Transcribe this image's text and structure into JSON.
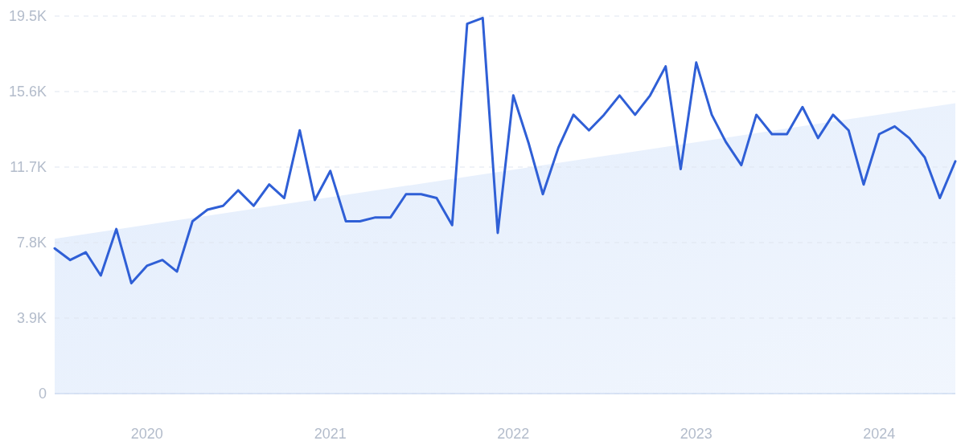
{
  "chart_data": {
    "type": "line",
    "x": [
      "2019-07",
      "2019-08",
      "2019-09",
      "2019-10",
      "2019-11",
      "2019-12",
      "2020-01",
      "2020-02",
      "2020-03",
      "2020-04",
      "2020-05",
      "2020-06",
      "2020-07",
      "2020-08",
      "2020-09",
      "2020-10",
      "2020-11",
      "2020-12",
      "2021-01",
      "2021-02",
      "2021-03",
      "2021-04",
      "2021-05",
      "2021-06",
      "2021-07",
      "2021-08",
      "2021-09",
      "2021-10",
      "2021-11",
      "2021-12",
      "2022-01",
      "2022-02",
      "2022-03",
      "2022-04",
      "2022-05",
      "2022-06",
      "2022-07",
      "2022-08",
      "2022-09",
      "2022-10",
      "2022-11",
      "2022-12",
      "2023-01",
      "2023-02",
      "2023-03",
      "2023-04",
      "2023-05",
      "2023-06",
      "2023-07",
      "2023-08",
      "2023-09",
      "2023-10",
      "2023-11",
      "2023-12",
      "2024-01",
      "2024-02",
      "2024-03",
      "2024-04",
      "2024-05",
      "2024-06"
    ],
    "series": [
      {
        "type": "area",
        "color": "#e3edfc",
        "x": [
          "2019-07",
          "2024-06"
        ],
        "values": [
          8000,
          15000
        ]
      },
      {
        "color": "#2f5fd6",
        "values": [
          7500,
          6900,
          7300,
          6100,
          8500,
          5700,
          6600,
          6900,
          6300,
          8900,
          9500,
          9700,
          10500,
          9700,
          10800,
          10100,
          13600,
          10000,
          11500,
          8900,
          8900,
          9100,
          9100,
          10300,
          10300,
          10100,
          8700,
          19100,
          19400,
          8300,
          15400,
          12900,
          10300,
          12700,
          14400,
          13600,
          14400,
          15400,
          14400,
          15400,
          16900,
          11600,
          17100,
          14400,
          13000,
          11800,
          14400,
          13400,
          13400,
          14800,
          13200,
          14400,
          13600,
          10800,
          13400,
          13800,
          13200,
          12200,
          10100,
          12000
        ]
      }
    ],
    "xlim": [
      "2019-07",
      "2024-06"
    ],
    "xticks": [
      "2020",
      "2021",
      "2022",
      "2023",
      "2024"
    ],
    "ylim": [
      0,
      19500
    ],
    "yticks": [
      0,
      {
        "value": 3900,
        "label": "3.9K"
      },
      {
        "value": 7800,
        "label": "7.8K"
      },
      {
        "value": 11700,
        "label": "11.7K"
      },
      {
        "value": 15600,
        "label": "15.6K"
      },
      {
        "value": 19500,
        "label": "19.5K"
      }
    ],
    "grid": "y",
    "marker": "none",
    "line_style": "solid"
  }
}
